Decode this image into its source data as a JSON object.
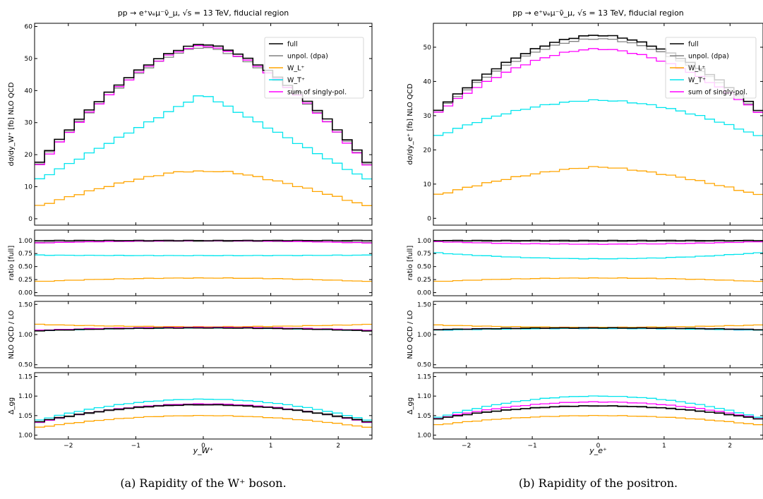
{
  "chart_data": [
    {
      "type": "line",
      "title": "pp → e⁺νₑμ⁻ν̄_μ, √s = 13 TeV, fiducial region",
      "xlabel": "y_W⁺",
      "caption": "(a)  Rapidity of the W⁺ boson.",
      "x_edges_range": [
        -2.5,
        2.5
      ],
      "xticks": [
        -2,
        -1,
        0,
        1,
        2
      ],
      "xtick_labels": [
        "−2",
        "−1",
        "0",
        "1",
        "2"
      ],
      "colors": {
        "full": "#000000",
        "unpol": "#808080",
        "WL": "#FFA500",
        "WT": "#00E5EE",
        "sum": "#FF00FF"
      },
      "legend_labels": [
        "full",
        "unpol. (dpa)",
        "W_L⁺",
        "W_T⁺",
        "sum of singly-pol."
      ],
      "legend_position": "top-right",
      "panels": [
        {
          "ylabel": "dσ/dy_W⁺ [fb] NLO QCD",
          "ylim": [
            -2,
            61
          ],
          "yticks": [
            0,
            10,
            20,
            30,
            40,
            50,
            60
          ],
          "profiles": {
            "full": {
              "edge": 16.0,
              "center": 54.5,
              "shape": "arch",
              "power": 1.6
            },
            "unpol": {
              "edge": 15.5,
              "center": 53.5,
              "shape": "arch",
              "power": 1.6
            },
            "WL": {
              "edge": 3.5,
              "center": 15.5,
              "shape": "dip",
              "dip": 0.9
            },
            "WT": {
              "edge": 11.5,
              "center": 39.0,
              "shape": "peak"
            },
            "sum": {
              "edge": 15.0,
              "center": 54.0,
              "shape": "arch",
              "power": 1.6
            }
          }
        },
        {
          "ylabel": "ratio [full]",
          "ylim": [
            -0.06,
            1.2
          ],
          "yticks": [
            0.0,
            0.25,
            0.5,
            0.75,
            1.0
          ],
          "ytick_labels": [
            "0.00",
            "0.25",
            "0.50",
            "0.75",
            "1.00"
          ],
          "profiles": {
            "full": {
              "edge": 1.0,
              "center": 1.0
            },
            "unpol": {
              "edge": 0.97,
              "center": 0.985
            },
            "WL": {
              "edge": 0.21,
              "center": 0.28
            },
            "WT": {
              "edge": 0.72,
              "center": 0.71
            },
            "sum": {
              "edge": 0.95,
              "center": 0.995
            }
          }
        },
        {
          "ylabel": "NLO QCD / LO",
          "ylim": [
            0.45,
            1.55
          ],
          "yticks": [
            0.5,
            1.0,
            1.5
          ],
          "ytick_labels": [
            "0.50",
            "1.00",
            "1.50"
          ],
          "profiles": {
            "full": {
              "edge": 1.06,
              "center": 1.11
            },
            "unpol": {
              "edge": 1.06,
              "center": 1.11
            },
            "WL": {
              "edge": 1.17,
              "center": 1.13
            },
            "WT": {
              "edge": 1.06,
              "center": 1.11
            },
            "sum": {
              "edge": 1.07,
              "center": 1.12
            }
          }
        },
        {
          "ylabel": "Δ_gg",
          "ylim": [
            0.99,
            1.16
          ],
          "yticks": [
            1.0,
            1.05,
            1.1,
            1.15
          ],
          "ytick_labels": [
            "1.00",
            "1.05",
            "1.10",
            "1.15"
          ],
          "profiles": {
            "full": {
              "edge": 1.032,
              "center": 1.078
            },
            "unpol": {
              "edge": 1.03,
              "center": 1.077
            },
            "WL": {
              "edge": 1.018,
              "center": 1.05
            },
            "WT": {
              "edge": 1.035,
              "center": 1.092
            },
            "sum": {
              "edge": 1.03,
              "center": 1.08
            }
          }
        }
      ]
    },
    {
      "type": "line",
      "title": "pp → e⁺νₑμ⁻ν̄_μ, √s = 13 TeV, fiducial region",
      "xlabel": "y_e⁺",
      "caption": "(b)  Rapidity of the positron.",
      "x_edges_range": [
        -2.5,
        2.5
      ],
      "xticks": [
        -2,
        -1,
        0,
        1,
        2
      ],
      "xtick_labels": [
        "−2",
        "−1",
        "0",
        "1",
        "2"
      ],
      "colors": {
        "full": "#000000",
        "unpol": "#808080",
        "WL": "#FFA500",
        "WT": "#00E5EE",
        "sum": "#FF00FF"
      },
      "legend_labels": [
        "full",
        "unpol. (dpa)",
        "W_L⁺",
        "W_T⁺",
        "sum of singly-pol."
      ],
      "legend_position": "top-right",
      "panels": [
        {
          "ylabel": "dσ/dy_e⁺ [fb] NLO QCD",
          "ylim": [
            -2,
            57
          ],
          "yticks": [
            0,
            10,
            20,
            30,
            40,
            50
          ],
          "profiles": {
            "full": {
              "edge": 30.5,
              "center": 53.5,
              "shape": "arch",
              "power": 1.8
            },
            "unpol": {
              "edge": 30.0,
              "center": 52.5,
              "shape": "arch",
              "power": 1.8
            },
            "WL": {
              "edge": 6.5,
              "center": 15.0,
              "shape": "arch",
              "power": 1.5
            },
            "WT": {
              "edge": 23.5,
              "center": 34.5,
              "shape": "arch",
              "power": 1.8
            },
            "sum": {
              "edge": 30.0,
              "center": 49.5,
              "shape": "arch",
              "power": 1.8
            }
          }
        },
        {
          "ylabel": "ratio [full]",
          "ylim": [
            -0.06,
            1.2
          ],
          "yticks": [
            0.0,
            0.25,
            0.5,
            0.75,
            1.0
          ],
          "ytick_labels": [
            "0.00",
            "0.25",
            "0.50",
            "0.75",
            "1.00"
          ],
          "profiles": {
            "full": {
              "edge": 1.0,
              "center": 1.0
            },
            "unpol": {
              "edge": 0.99,
              "center": 0.98
            },
            "WL": {
              "edge": 0.21,
              "center": 0.28
            },
            "WT": {
              "edge": 0.77,
              "center": 0.65
            },
            "sum": {
              "edge": 0.98,
              "center": 0.93
            }
          }
        },
        {
          "ylabel": "NLO QCD / LO",
          "ylim": [
            0.45,
            1.55
          ],
          "yticks": [
            0.5,
            1.0,
            1.5
          ],
          "ytick_labels": [
            "0.50",
            "1.00",
            "1.50"
          ],
          "profiles": {
            "full": {
              "edge": 1.08,
              "center": 1.11
            },
            "unpol": {
              "edge": 1.08,
              "center": 1.11
            },
            "WL": {
              "edge": 1.16,
              "center": 1.12
            },
            "WT": {
              "edge": 1.07,
              "center": 1.1
            },
            "sum": {
              "edge": 1.08,
              "center": 1.11
            }
          }
        },
        {
          "ylabel": "Δ_gg",
          "ylim": [
            0.99,
            1.16
          ],
          "yticks": [
            1.0,
            1.05,
            1.1,
            1.15
          ],
          "ytick_labels": [
            "1.00",
            "1.05",
            "1.10",
            "1.15"
          ],
          "profiles": {
            "full": {
              "edge": 1.04,
              "center": 1.075
            },
            "unpol": {
              "edge": 1.04,
              "center": 1.074
            },
            "WL": {
              "edge": 1.025,
              "center": 1.05
            },
            "WT": {
              "edge": 1.042,
              "center": 1.1
            },
            "sum": {
              "edge": 1.04,
              "center": 1.085
            }
          }
        }
      ]
    }
  ]
}
